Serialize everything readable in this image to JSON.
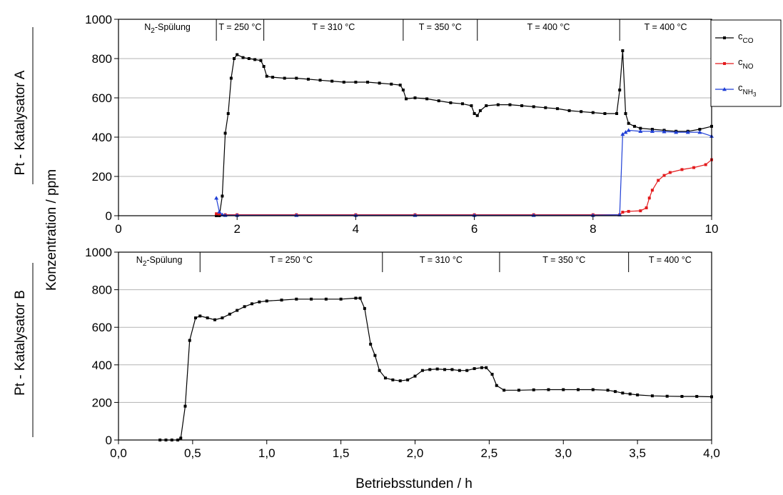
{
  "colors": {
    "co": "#000000",
    "no": "#e31a1c",
    "nh3": "#1f3fd6",
    "grid": "#b3b3b3"
  },
  "labels": {
    "y_shared": "Konzentration / ppm",
    "x_bottom": "Betriebsstunden / h",
    "panel_a": "Pt - Katalysator A",
    "panel_b": "Pt - Katalysator B"
  },
  "chart_data": [
    {
      "type": "line",
      "panel": "Pt - Katalysator A",
      "xlim": [
        0,
        10
      ],
      "ylim": [
        0,
        1000
      ],
      "xticks": [
        0,
        2,
        4,
        6,
        8,
        10
      ],
      "xtick_labels": [
        "0",
        "2",
        "4",
        "6",
        "8",
        "10"
      ],
      "yticks": [
        0,
        200,
        400,
        600,
        800,
        1000
      ],
      "ytick_labels": [
        "0",
        "200",
        "400",
        "600",
        "800",
        "1000"
      ],
      "grid": "horizontal",
      "legend": {
        "placement": "right",
        "entries": [
          {
            "base": "c",
            "sub": "CO"
          },
          {
            "base": "c",
            "sub": "NO"
          },
          {
            "base": "c",
            "sub": "NH",
            "sub2": "3"
          }
        ]
      },
      "phases": [
        {
          "main": "N",
          "sub": "2",
          "rest": "-Spülung",
          "x_end": 1.65
        },
        {
          "main": "T = 250 °C",
          "x_end": 2.45
        },
        {
          "main": "T = 310 °C",
          "x_end": 4.8
        },
        {
          "main": "T = 350 °C",
          "x_end": 6.05
        },
        {
          "main": "T = 400 °C",
          "x_end": 8.45
        },
        {
          "main": "T = 400 °C",
          "x_end": 10
        }
      ],
      "series": [
        {
          "key": "co",
          "x": [
            1.65,
            1.7,
            1.75,
            1.8,
            1.85,
            1.9,
            1.95,
            2.0,
            2.1,
            2.2,
            2.3,
            2.4,
            2.45,
            2.5,
            2.6,
            2.8,
            3.0,
            3.2,
            3.4,
            3.6,
            3.8,
            4.0,
            4.2,
            4.4,
            4.6,
            4.75,
            4.8,
            4.85,
            5.0,
            5.2,
            5.4,
            5.6,
            5.8,
            5.95,
            6.0,
            6.05,
            6.1,
            6.2,
            6.4,
            6.6,
            6.8,
            7.0,
            7.2,
            7.4,
            7.6,
            7.8,
            8.0,
            8.2,
            8.4,
            8.45,
            8.5,
            8.55,
            8.6,
            8.7,
            8.8,
            9.0,
            9.2,
            9.4,
            9.6,
            9.8,
            10.0
          ],
          "y": [
            0,
            0,
            100,
            420,
            520,
            700,
            800,
            820,
            805,
            800,
            795,
            790,
            760,
            710,
            705,
            700,
            700,
            695,
            690,
            685,
            680,
            680,
            680,
            675,
            670,
            665,
            640,
            595,
            600,
            595,
            585,
            575,
            570,
            560,
            520,
            510,
            535,
            560,
            565,
            565,
            560,
            555,
            550,
            545,
            535,
            530,
            525,
            520,
            520,
            640,
            840,
            520,
            470,
            455,
            445,
            440,
            435,
            430,
            430,
            440,
            455
          ]
        },
        {
          "key": "no",
          "x": [
            1.65,
            1.7,
            1.8,
            2.0,
            3.0,
            4.0,
            5.0,
            6.0,
            7.0,
            8.0,
            8.45,
            8.5,
            8.6,
            8.8,
            8.9,
            8.95,
            9.0,
            9.1,
            9.2,
            9.3,
            9.5,
            9.7,
            9.9,
            10.0
          ],
          "y": [
            10,
            5,
            5,
            5,
            5,
            5,
            5,
            5,
            5,
            5,
            5,
            18,
            22,
            25,
            40,
            90,
            130,
            180,
            205,
            220,
            235,
            245,
            260,
            285
          ]
        },
        {
          "key": "nh3",
          "x": [
            1.65,
            1.7,
            1.75,
            1.8,
            2.0,
            3.0,
            4.0,
            5.0,
            6.0,
            7.0,
            8.0,
            8.45,
            8.5,
            8.55,
            8.6,
            8.8,
            9.0,
            9.2,
            9.4,
            9.6,
            9.8,
            10.0
          ],
          "y": [
            90,
            20,
            5,
            2,
            2,
            2,
            2,
            2,
            2,
            2,
            2,
            5,
            415,
            425,
            435,
            430,
            430,
            428,
            425,
            425,
            425,
            405
          ]
        }
      ]
    },
    {
      "type": "line",
      "panel": "Pt - Katalysator B",
      "xlim": [
        0,
        4
      ],
      "ylim": [
        0,
        1000
      ],
      "xticks": [
        0,
        0.5,
        1,
        1.5,
        2,
        2.5,
        3,
        3.5,
        4
      ],
      "xtick_labels": [
        "0,0",
        "0,5",
        "1,0",
        "1,5",
        "2,0",
        "2,5",
        "3,0",
        "3,5",
        "4,0"
      ],
      "yticks": [
        0,
        200,
        400,
        600,
        800,
        1000
      ],
      "ytick_labels": [
        "0",
        "200",
        "400",
        "600",
        "800",
        "1000"
      ],
      "grid": "horizontal",
      "phases": [
        {
          "main": "N",
          "sub": "2",
          "rest": "-Spülung",
          "x_end": 0.55
        },
        {
          "main": "T = 250 °C",
          "x_end": 1.78
        },
        {
          "main": "T = 310 °C",
          "x_end": 2.57
        },
        {
          "main": "T = 350 °C",
          "x_end": 3.44
        },
        {
          "main": "T = 400 °C",
          "x_end": 4.0
        }
      ],
      "series": [
        {
          "key": "co",
          "x": [
            0.28,
            0.32,
            0.36,
            0.4,
            0.42,
            0.45,
            0.48,
            0.52,
            0.55,
            0.6,
            0.65,
            0.7,
            0.75,
            0.8,
            0.85,
            0.9,
            0.95,
            1.0,
            1.1,
            1.2,
            1.3,
            1.4,
            1.5,
            1.6,
            1.63,
            1.66,
            1.7,
            1.73,
            1.76,
            1.8,
            1.85,
            1.9,
            1.95,
            2.0,
            2.05,
            2.1,
            2.15,
            2.2,
            2.25,
            2.3,
            2.35,
            2.4,
            2.45,
            2.48,
            2.52,
            2.55,
            2.6,
            2.7,
            2.8,
            2.9,
            3.0,
            3.1,
            3.2,
            3.3,
            3.35,
            3.4,
            3.45,
            3.5,
            3.6,
            3.7,
            3.8,
            3.9,
            4.0
          ],
          "y": [
            0,
            0,
            0,
            0,
            10,
            180,
            530,
            650,
            660,
            650,
            640,
            650,
            670,
            690,
            710,
            725,
            735,
            740,
            745,
            750,
            750,
            750,
            750,
            755,
            755,
            700,
            510,
            450,
            370,
            330,
            320,
            315,
            320,
            340,
            370,
            375,
            378,
            375,
            375,
            370,
            370,
            380,
            385,
            385,
            350,
            290,
            265,
            265,
            267,
            268,
            268,
            268,
            268,
            265,
            258,
            250,
            245,
            240,
            235,
            233,
            232,
            232,
            230
          ]
        }
      ]
    }
  ]
}
